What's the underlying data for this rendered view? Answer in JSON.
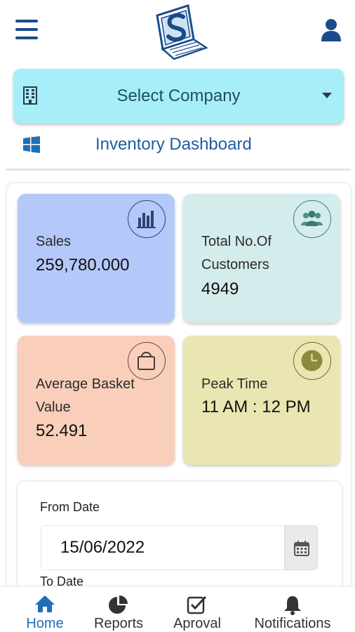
{
  "company_select": {
    "label": "Select Company"
  },
  "dashboard_link": {
    "label": "Inventory Dashboard"
  },
  "cards": {
    "sales": {
      "label": "Sales",
      "value": "259,780.000"
    },
    "customers": {
      "label_line1": "Total No.Of",
      "label_line2": "Customers",
      "value": "4949"
    },
    "basket": {
      "label_line1": "Average Basket",
      "label_line2": "Value",
      "value": "52.491"
    },
    "peak": {
      "label": "Peak Time",
      "value": "11 AM : 12 PM"
    }
  },
  "filters": {
    "from_label": "From Date",
    "from_value": "15/06/2022",
    "to_label": "To Date"
  },
  "bottom_nav": {
    "home": "Home",
    "reports": "Reports",
    "approval": "Aproval",
    "notifications": "Notifications"
  },
  "colors": {
    "accent": "#1f6fb8",
    "company_select_bg": "#a7eef8",
    "sales_card": "#b4c8f9",
    "customers_card": "#d5ecec",
    "basket_card": "#f9cfbb",
    "peak_card": "#eae6b2"
  },
  "icons": {
    "menu": "hamburger-menu-icon",
    "logo": "company-logo",
    "user": "user-icon",
    "building": "building-icon",
    "windows": "windows-icon",
    "sales": "bar-chart-icon",
    "customers": "users-group-icon",
    "basket": "shopping-bag-icon",
    "peak": "clock-icon",
    "calendar": "calendar-icon",
    "home": "home-icon",
    "reports": "pie-chart-icon",
    "approval": "check-square-icon",
    "notifications": "bell-icon"
  }
}
